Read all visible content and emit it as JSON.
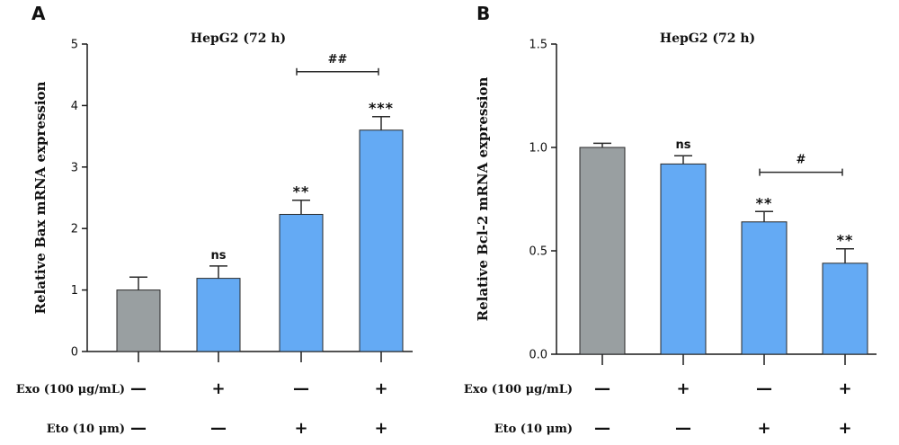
{
  "colors": {
    "control": "#999fa1",
    "treated": "#64aaf4",
    "axis": "#1a1a1a"
  },
  "conditions": {
    "exo": {
      "label": "Exo (100 μg/mL)",
      "marks": [
        "—",
        "+",
        "—",
        "+"
      ]
    },
    "eto": {
      "label": "Eto (10 μm)",
      "marks": [
        "—",
        "—",
        "+",
        "+"
      ]
    }
  },
  "chart_data": [
    {
      "panel": "A",
      "type": "bar",
      "title": "HepG2 (72 h)",
      "ylabel": "Relative Bax mRNA expression",
      "xlabel": "",
      "ylim": [
        0,
        5
      ],
      "yticks": [
        "0",
        "1",
        "2",
        "3",
        "4",
        "5"
      ],
      "ytick_values": [
        0,
        1,
        2,
        3,
        4,
        5
      ],
      "values": [
        1.0,
        1.19,
        2.23,
        3.6
      ],
      "errors": [
        0.21,
        0.2,
        0.23,
        0.22
      ],
      "significance": [
        "",
        "ns",
        "**",
        "***"
      ],
      "bracket": {
        "label": "##",
        "from": 2,
        "to": 3,
        "y": 4.55
      }
    },
    {
      "panel": "B",
      "type": "bar",
      "title": "HepG2 (72 h)",
      "ylabel": "Relative Bcl-2 mRNA expression",
      "xlabel": "",
      "ylim": [
        0,
        1.5
      ],
      "yticks": [
        "0.0",
        "0.5",
        "1.0",
        "1.5"
      ],
      "ytick_values": [
        0,
        0.5,
        1.0,
        1.5
      ],
      "values": [
        1.0,
        0.92,
        0.64,
        0.44
      ],
      "errors": [
        0.02,
        0.04,
        0.05,
        0.07
      ],
      "significance": [
        "",
        "ns",
        "**",
        "**"
      ],
      "bracket": {
        "label": "#",
        "from": 2,
        "to": 3,
        "y": 0.88
      }
    }
  ]
}
